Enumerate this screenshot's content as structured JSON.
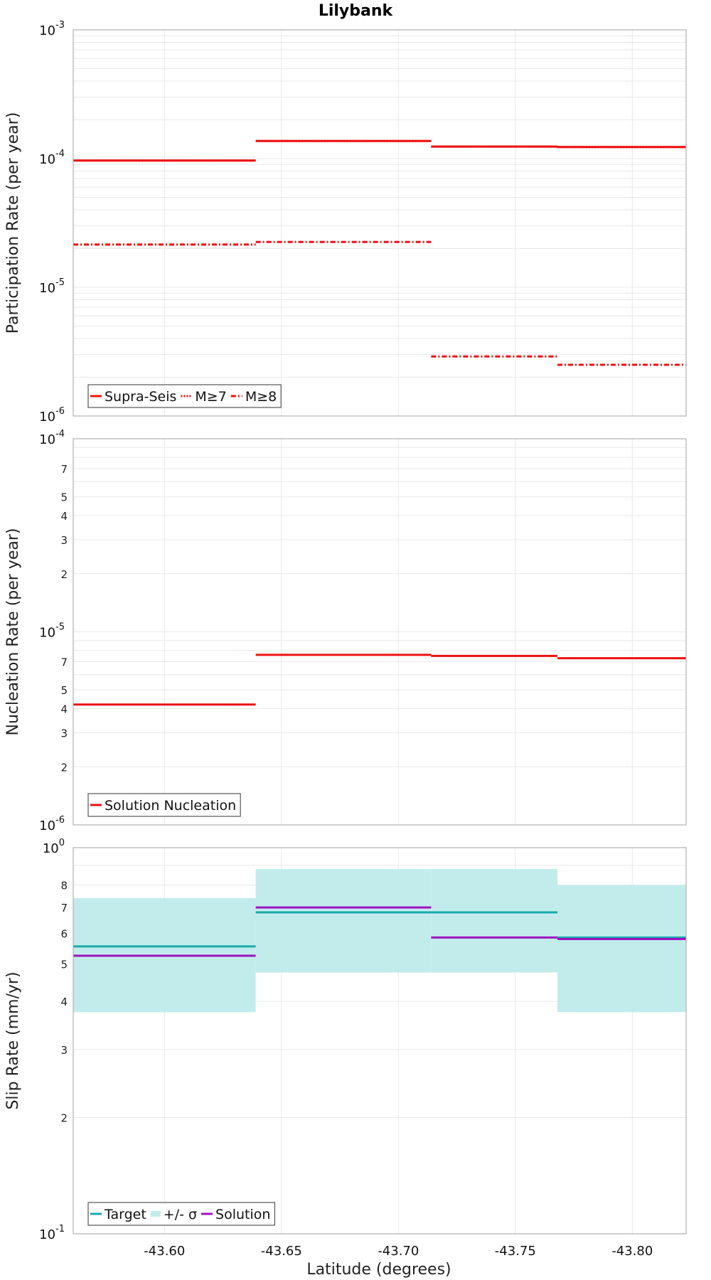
{
  "title": "Lilybank",
  "xlabel": "Latitude (degrees)",
  "x_ticks": [
    -43.6,
    -43.65,
    -43.7,
    -43.75,
    -43.8
  ],
  "x_tick_labels": [
    "-43.60",
    "-43.65",
    "-43.70",
    "-43.75",
    "-43.80"
  ],
  "xlim": [
    -43.561,
    -43.823
  ],
  "segments": [
    {
      "x0": -43.561,
      "x1": -43.639
    },
    {
      "x0": -43.639,
      "x1": -43.714
    },
    {
      "x0": -43.714,
      "x1": -43.768
    },
    {
      "x0": -43.768,
      "x1": -43.823
    }
  ],
  "colors": {
    "red": "#ee1111",
    "target": "#1aaaaa",
    "sigma_fill": "#c2ecec",
    "solution": "#a010c0",
    "grid": "#e8e8e8",
    "frame": "#b0b0b0"
  },
  "chart_data": [
    {
      "type": "step",
      "ylabel": "Participation Rate (per year)",
      "yscale": "log",
      "ylim": [
        1e-06,
        0.001
      ],
      "ytick_exponents": [
        -6,
        -5,
        -4,
        -3
      ],
      "grid": true,
      "legend_position": "bottom-left",
      "series": [
        {
          "name": "Supra-Seis",
          "style": "solid",
          "values": [
            9.65e-05,
            0.000137,
            0.000124,
            0.000123
          ]
        },
        {
          "name": "M≥7",
          "style": "dotted",
          "values": [
            9.65e-05,
            0.000137,
            0.000124,
            0.000123
          ]
        },
        {
          "name": "M≥8",
          "style": "dashdot",
          "values": [
            2.15e-05,
            2.25e-05,
            2.9e-06,
            2.5e-06
          ]
        }
      ]
    },
    {
      "type": "step",
      "ylabel": "Nucleation Rate (per year)",
      "yscale": "log",
      "ylim": [
        1e-06,
        0.0001
      ],
      "ytick_exponents": [
        -6,
        -5,
        -4
      ],
      "minor_tick_labels": [
        {
          "value": 2e-06,
          "label": "2"
        },
        {
          "value": 3e-06,
          "label": "3"
        },
        {
          "value": 4e-06,
          "label": "4"
        },
        {
          "value": 5e-06,
          "label": "5"
        },
        {
          "value": 7e-06,
          "label": "7"
        },
        {
          "value": 2e-05,
          "label": "2"
        },
        {
          "value": 3e-05,
          "label": "3"
        },
        {
          "value": 4e-05,
          "label": "4"
        },
        {
          "value": 5e-05,
          "label": "5"
        },
        {
          "value": 7e-05,
          "label": "7"
        }
      ],
      "grid": true,
      "legend_position": "bottom-left",
      "series": [
        {
          "name": "Solution Nucleation",
          "style": "solid",
          "values": [
            4.2e-06,
            7.6e-06,
            7.5e-06,
            7.3e-06
          ]
        }
      ]
    },
    {
      "type": "step",
      "ylabel": "Slip Rate (mm/yr)",
      "yscale": "log",
      "ylim": [
        0.1,
        1
      ],
      "ytick_exponents": [
        -1,
        0
      ],
      "minor_tick_labels": [
        {
          "value": 0.2,
          "label": "2"
        },
        {
          "value": 0.3,
          "label": "3"
        },
        {
          "value": 0.4,
          "label": "4"
        },
        {
          "value": 0.5,
          "label": "5"
        },
        {
          "value": 0.6,
          "label": "6"
        },
        {
          "value": 0.7,
          "label": "7"
        },
        {
          "value": 0.8,
          "label": "8"
        }
      ],
      "grid": true,
      "legend_position": "bottom-left",
      "band": {
        "name": "+/- σ",
        "lower": [
          0.375,
          0.475,
          0.475,
          0.375
        ],
        "upper": [
          0.74,
          0.88,
          0.88,
          0.8
        ]
      },
      "series": [
        {
          "name": "Target",
          "style": "solid",
          "values": [
            0.555,
            0.68,
            0.68,
            0.585
          ]
        },
        {
          "name": "Solution",
          "style": "solid",
          "values": [
            0.525,
            0.7,
            0.585,
            0.58
          ]
        }
      ]
    }
  ]
}
